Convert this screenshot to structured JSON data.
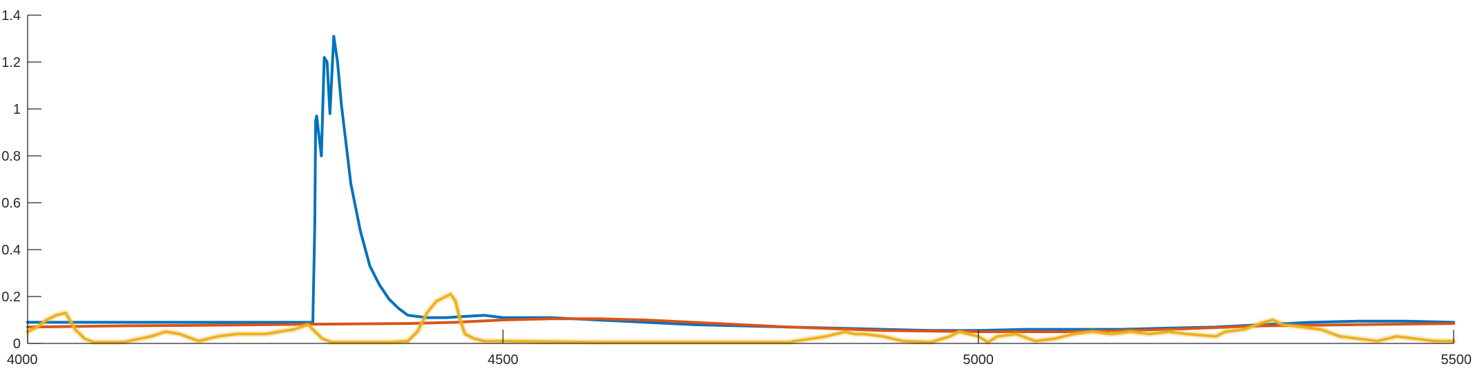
{
  "chart_data": {
    "type": "line",
    "title": "",
    "xlabel": "",
    "ylabel": "",
    "xlim": [
      4000,
      5500
    ],
    "ylim": [
      0,
      1.4
    ],
    "x_ticks": [
      4000,
      4500,
      5000,
      5500
    ],
    "x_tick_labels": [
      "4000",
      "4500",
      "5000",
      "5500"
    ],
    "y_ticks": [
      0,
      0.2,
      0.4,
      0.6,
      0.8,
      1.0,
      1.2,
      1.4
    ],
    "y_tick_labels": [
      "0",
      "0.2",
      "0.4",
      "0.6",
      "0.8",
      "1",
      "1.2",
      "1.4"
    ],
    "grid": false,
    "legend": "none",
    "series": [
      {
        "name": "blue",
        "color": "#0072BD",
        "x": [
          4000,
          4050,
          4100,
          4150,
          4200,
          4250,
          4300,
          4302,
          4303,
          4304,
          4306,
          4309,
          4312,
          4315,
          4318,
          4322,
          4326,
          4330,
          4335,
          4340,
          4350,
          4360,
          4370,
          4380,
          4390,
          4400,
          4420,
          4440,
          4460,
          4480,
          4500,
          4550,
          4600,
          4650,
          4700,
          4750,
          4800,
          4850,
          4900,
          4950,
          5000,
          5050,
          5100,
          5150,
          5200,
          5250,
          5300,
          5350,
          5400,
          5450,
          5500
        ],
        "values": [
          0.09,
          0.09,
          0.09,
          0.09,
          0.09,
          0.09,
          0.09,
          0.5,
          0.95,
          0.97,
          0.9,
          0.8,
          1.22,
          1.2,
          0.98,
          1.31,
          1.2,
          1.02,
          0.85,
          0.68,
          0.48,
          0.33,
          0.25,
          0.19,
          0.15,
          0.12,
          0.11,
          0.11,
          0.115,
          0.12,
          0.11,
          0.11,
          0.1,
          0.09,
          0.08,
          0.075,
          0.07,
          0.065,
          0.06,
          0.055,
          0.055,
          0.06,
          0.06,
          0.06,
          0.065,
          0.07,
          0.08,
          0.09,
          0.095,
          0.095,
          0.09
        ]
      },
      {
        "name": "orange",
        "color": "#D95319",
        "x": [
          4000,
          4100,
          4200,
          4300,
          4400,
          4450,
          4500,
          4550,
          4600,
          4650,
          4700,
          4800,
          4900,
          5000,
          5100,
          5200,
          5300,
          5400,
          5500
        ],
        "values": [
          0.07,
          0.075,
          0.078,
          0.082,
          0.085,
          0.09,
          0.1,
          0.105,
          0.105,
          0.1,
          0.09,
          0.07,
          0.055,
          0.05,
          0.05,
          0.06,
          0.075,
          0.08,
          0.085
        ]
      },
      {
        "name": "yellow",
        "color": "#EDB120",
        "x": [
          4000,
          4010,
          4020,
          4030,
          4040,
          4050,
          4060,
          4070,
          4100,
          4130,
          4145,
          4160,
          4180,
          4200,
          4220,
          4250,
          4280,
          4295,
          4300,
          4310,
          4320,
          4350,
          4380,
          4400,
          4410,
          4420,
          4430,
          4440,
          4445,
          4450,
          4455,
          4460,
          4470,
          4480,
          4500,
          4600,
          4700,
          4800,
          4840,
          4860,
          4870,
          4880,
          4900,
          4920,
          4950,
          4970,
          4980,
          4990,
          5000,
          5010,
          5020,
          5040,
          5060,
          5080,
          5100,
          5120,
          5140,
          5160,
          5180,
          5200,
          5220,
          5250,
          5260,
          5280,
          5300,
          5310,
          5320,
          5340,
          5360,
          5380,
          5400,
          5420,
          5430,
          5440,
          5460,
          5480,
          5500
        ],
        "values": [
          0.05,
          0.07,
          0.1,
          0.12,
          0.13,
          0.06,
          0.02,
          0.005,
          0.005,
          0.03,
          0.05,
          0.04,
          0.01,
          0.03,
          0.04,
          0.04,
          0.06,
          0.08,
          0.06,
          0.02,
          0.005,
          0.005,
          0.005,
          0.01,
          0.05,
          0.13,
          0.18,
          0.2,
          0.21,
          0.18,
          0.1,
          0.04,
          0.02,
          0.01,
          0.01,
          0.005,
          0.005,
          0.005,
          0.03,
          0.05,
          0.04,
          0.04,
          0.03,
          0.01,
          0.005,
          0.03,
          0.05,
          0.04,
          0.03,
          0.005,
          0.03,
          0.04,
          0.01,
          0.02,
          0.04,
          0.05,
          0.04,
          0.05,
          0.04,
          0.05,
          0.04,
          0.03,
          0.05,
          0.06,
          0.09,
          0.1,
          0.08,
          0.07,
          0.06,
          0.03,
          0.02,
          0.01,
          0.02,
          0.03,
          0.02,
          0.01,
          0.01
        ]
      }
    ]
  }
}
